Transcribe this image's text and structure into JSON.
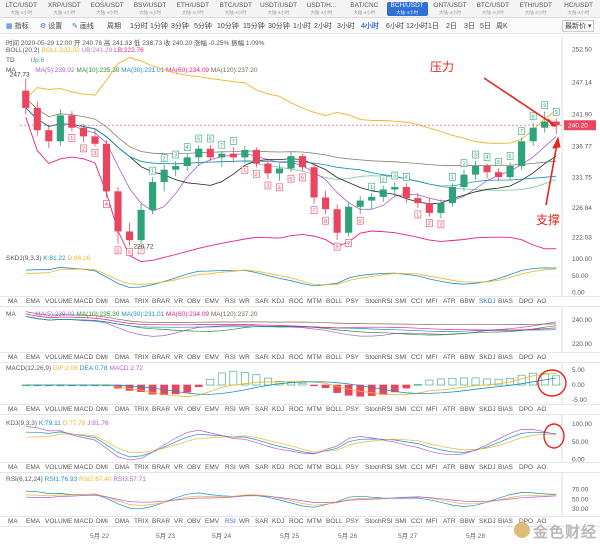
{
  "tabs": [
    {
      "label": "LTC/USDT",
      "sub": "大陆·4小时"
    },
    {
      "label": "XRP/USDT",
      "sub": "大陆·4小时"
    },
    {
      "label": "EOS/USDT",
      "sub": "大陆·4小时"
    },
    {
      "label": "BSV/USDT",
      "sub": "大陆·4小时"
    },
    {
      "label": "ETH/USDT",
      "sub": "大陆·4小时"
    },
    {
      "label": "BTC/USDT",
      "sub": "大陆·4小时"
    },
    {
      "label": "USDT/USDT",
      "sub": "大陆·4小时"
    },
    {
      "label": "USDT/H...",
      "sub": "大陆·4小时"
    },
    {
      "label": "BAT/CNC",
      "sub": "大陆·4小时"
    },
    {
      "label": "BCH/USDT",
      "sub": "大陆·4小时"
    },
    {
      "label": "ONT/USDT",
      "sub": "大陆·4小时"
    },
    {
      "label": "BTC/USDT",
      "sub": "大陆·4小时"
    },
    {
      "label": "ETH/USDT",
      "sub": "大陆·4小时"
    },
    {
      "label": "HC/USDT",
      "sub": "大陆·4小时"
    }
  ],
  "active_tab": 9,
  "toolbar": {
    "indicator": "指标",
    "settings": "设置",
    "draw": "画线",
    "intervals": [
      "周期",
      "1分时",
      "1分钟",
      "3分钟",
      "5分钟",
      "10分钟",
      "15分钟",
      "30分钟",
      "1小时",
      "2小时",
      "3小时",
      "4小时",
      "6小时",
      "12小时",
      "1日",
      "2日",
      "3日",
      "5日",
      "周K"
    ],
    "active_interval": 11,
    "price_type": "最新价"
  },
  "ohlc_line": "时间 2020-05-29 12:00  开 240.76  高 241.33  低 238.73  收 240.20  涨幅 -0.25%  振幅 1.09%",
  "boll_line": {
    "name": "BOLL(20,2)",
    "mid": "BOLL:232.02",
    "ub": "UB:241.29",
    "lb": "LB:222.76"
  },
  "td_line": {
    "name": "TD",
    "up": "Up:6"
  },
  "ma_line": {
    "name": "MA",
    "v1": "MA(5):239.02",
    "v2": "MA(10):235.30",
    "v3": "MA(30):231.01",
    "v4": "MA(60):234.09",
    "v5": "MA(120):237.20"
  },
  "annotations": {
    "resistance": "压力",
    "support": "支撑"
  },
  "price_axis": [
    "252.50",
    "247.14",
    "241.90",
    "236.77",
    "231.75",
    "226.84",
    "222.03"
  ],
  "current_price": "240.20",
  "high_label": "247.73",
  "low_label": "220.72",
  "skdj_line": {
    "name": "SKDJ(9,3,3)",
    "k": "K:81.22",
    "d": "D:86.16"
  },
  "skdj_axis": [
    "100.00",
    "50.00",
    "0.00"
  ],
  "indicator_labels": [
    "MA",
    "EMA",
    "VOLUME",
    "MACD",
    "DMI",
    "DMA",
    "TRIX",
    "BRAR",
    "VR",
    "OBV",
    "EMV",
    "RSI",
    "WR",
    "SAR",
    "KDJ",
    "ROC",
    "MTM",
    "BOLL",
    "PSY",
    "StochRSI",
    "SMI",
    "CCI",
    "MFI",
    "ATR",
    "BBW",
    "SKDJ",
    "BIAS",
    "DPO",
    "AO"
  ],
  "ma2_line": {
    "name": "MA",
    "v1": "MA(5):239.02",
    "v2": "MA(10):235.30",
    "v3": "MA(30):231.01",
    "v4": "MA(60):234.09",
    "v5": "MA(120):237.20"
  },
  "ma2_axis": [
    "240.00",
    "220.00"
  ],
  "macd_line": {
    "name": "MACD(12,26,9)",
    "dif": "DIF:2.06",
    "dea": "DEA:0.78",
    "macd": "MACD:2.72"
  },
  "macd_axis": [
    "5.00",
    "0.00",
    "-5.00"
  ],
  "kdj_line": {
    "name": "KDJ(9,3,3)",
    "k": "K:79.11",
    "d": "D:77.78",
    "j": "J:81.76"
  },
  "kdj_axis": [
    "100.00",
    "50.00",
    "0.00"
  ],
  "rsi_line": {
    "name": "RSI(6,12,24)",
    "r1": "RSI1:76.93",
    "r2": "RSI2:67.40",
    "r3": "RSI3:57.71"
  },
  "rsi_axis": [
    "70.00",
    "50.00",
    "30.00"
  ],
  "dates": [
    "5月 22",
    "5月 23",
    "5月 24",
    "5月 25",
    "5月 26",
    "5月 27",
    "5月 28"
  ],
  "watermark": "金色财经",
  "colors": {
    "up": "#2ea37a",
    "down": "#e8465e",
    "accent": "#2f6fd6",
    "boll": "#f0b32a",
    "ma5": "#b05cd0",
    "ma10": "#2e8f2e",
    "ma30": "#1a8fbf",
    "ma60": "#e91e8c",
    "ma120": "#7a6a4f",
    "annotation": "#e5261f"
  },
  "chart_data": {
    "type": "candlestick",
    "title": "",
    "series": [
      {
        "name": "BCH/USDT 4H candles",
        "values": [
          {
            "o": 245.8,
            "h": 247.73,
            "l": 242.0,
            "c": 243.0
          },
          {
            "o": 243.0,
            "h": 244.0,
            "l": 238.5,
            "c": 239.4
          },
          {
            "o": 239.4,
            "h": 240.3,
            "l": 236.5,
            "c": 237.6
          },
          {
            "o": 237.6,
            "h": 242.8,
            "l": 236.9,
            "c": 241.8
          },
          {
            "o": 241.8,
            "h": 242.5,
            "l": 239.2,
            "c": 239.8
          },
          {
            "o": 239.8,
            "h": 240.4,
            "l": 237.5,
            "c": 238.4
          },
          {
            "o": 238.4,
            "h": 239.5,
            "l": 236.8,
            "c": 237.2
          },
          {
            "o": 237.2,
            "h": 237.8,
            "l": 228.5,
            "c": 229.5
          },
          {
            "o": 229.5,
            "h": 230.2,
            "l": 221.0,
            "c": 223.0
          },
          {
            "o": 223.0,
            "h": 224.4,
            "l": 220.72,
            "c": 221.6
          },
          {
            "o": 221.6,
            "h": 227.5,
            "l": 221.0,
            "c": 226.5
          },
          {
            "o": 226.5,
            "h": 231.8,
            "l": 225.8,
            "c": 231.0
          },
          {
            "o": 231.0,
            "h": 233.8,
            "l": 229.5,
            "c": 233.0
          },
          {
            "o": 233.0,
            "h": 234.4,
            "l": 232.0,
            "c": 233.6
          },
          {
            "o": 233.6,
            "h": 235.6,
            "l": 232.8,
            "c": 235.0
          },
          {
            "o": 235.0,
            "h": 237.0,
            "l": 233.6,
            "c": 236.4
          },
          {
            "o": 236.4,
            "h": 237.0,
            "l": 234.4,
            "c": 235.0
          },
          {
            "o": 235.0,
            "h": 236.0,
            "l": 233.5,
            "c": 235.6
          },
          {
            "o": 235.6,
            "h": 236.6,
            "l": 234.2,
            "c": 235.0
          },
          {
            "o": 235.0,
            "h": 236.8,
            "l": 234.0,
            "c": 236.2
          },
          {
            "o": 236.2,
            "h": 236.6,
            "l": 233.4,
            "c": 234.0
          },
          {
            "o": 234.0,
            "h": 234.6,
            "l": 231.5,
            "c": 232.4
          },
          {
            "o": 232.4,
            "h": 234.0,
            "l": 231.2,
            "c": 233.2
          },
          {
            "o": 233.2,
            "h": 235.8,
            "l": 232.6,
            "c": 235.2
          },
          {
            "o": 235.2,
            "h": 235.6,
            "l": 232.8,
            "c": 233.4
          },
          {
            "o": 233.4,
            "h": 234.0,
            "l": 227.5,
            "c": 228.5
          },
          {
            "o": 228.5,
            "h": 229.6,
            "l": 225.8,
            "c": 226.6
          },
          {
            "o": 226.6,
            "h": 227.4,
            "l": 221.6,
            "c": 222.8
          },
          {
            "o": 222.8,
            "h": 227.8,
            "l": 222.2,
            "c": 227.0
          },
          {
            "o": 227.0,
            "h": 228.8,
            "l": 225.8,
            "c": 228.0
          },
          {
            "o": 228.0,
            "h": 229.2,
            "l": 226.6,
            "c": 228.6
          },
          {
            "o": 228.6,
            "h": 230.4,
            "l": 227.8,
            "c": 229.8
          },
          {
            "o": 229.8,
            "h": 231.0,
            "l": 228.6,
            "c": 230.2
          },
          {
            "o": 230.2,
            "h": 230.8,
            "l": 227.6,
            "c": 228.4
          },
          {
            "o": 228.4,
            "h": 229.2,
            "l": 226.8,
            "c": 227.6
          },
          {
            "o": 227.6,
            "h": 228.4,
            "l": 225.4,
            "c": 226.0
          },
          {
            "o": 226.0,
            "h": 228.2,
            "l": 225.2,
            "c": 227.6
          },
          {
            "o": 227.6,
            "h": 230.8,
            "l": 227.0,
            "c": 230.2
          },
          {
            "o": 230.2,
            "h": 233.0,
            "l": 229.6,
            "c": 232.2
          },
          {
            "o": 232.2,
            "h": 234.4,
            "l": 231.4,
            "c": 233.6
          },
          {
            "o": 233.6,
            "h": 234.0,
            "l": 231.6,
            "c": 232.6
          },
          {
            "o": 232.6,
            "h": 233.2,
            "l": 231.2,
            "c": 231.8
          },
          {
            "o": 231.8,
            "h": 234.2,
            "l": 231.2,
            "c": 233.6
          },
          {
            "o": 233.6,
            "h": 238.2,
            "l": 233.0,
            "c": 237.6
          },
          {
            "o": 237.6,
            "h": 240.6,
            "l": 236.8,
            "c": 239.8
          },
          {
            "o": 239.8,
            "h": 242.4,
            "l": 239.0,
            "c": 240.8
          },
          {
            "o": 240.8,
            "h": 241.33,
            "l": 238.73,
            "c": 240.2
          }
        ]
      }
    ],
    "ylim": [
      220.0,
      254.0
    ],
    "xlabel": "",
    "ylabel": "",
    "x": [
      "5月 22",
      "5月 23",
      "5月 24",
      "5月 25",
      "5月 26",
      "5月 27",
      "5月 28"
    ],
    "grid": false
  }
}
